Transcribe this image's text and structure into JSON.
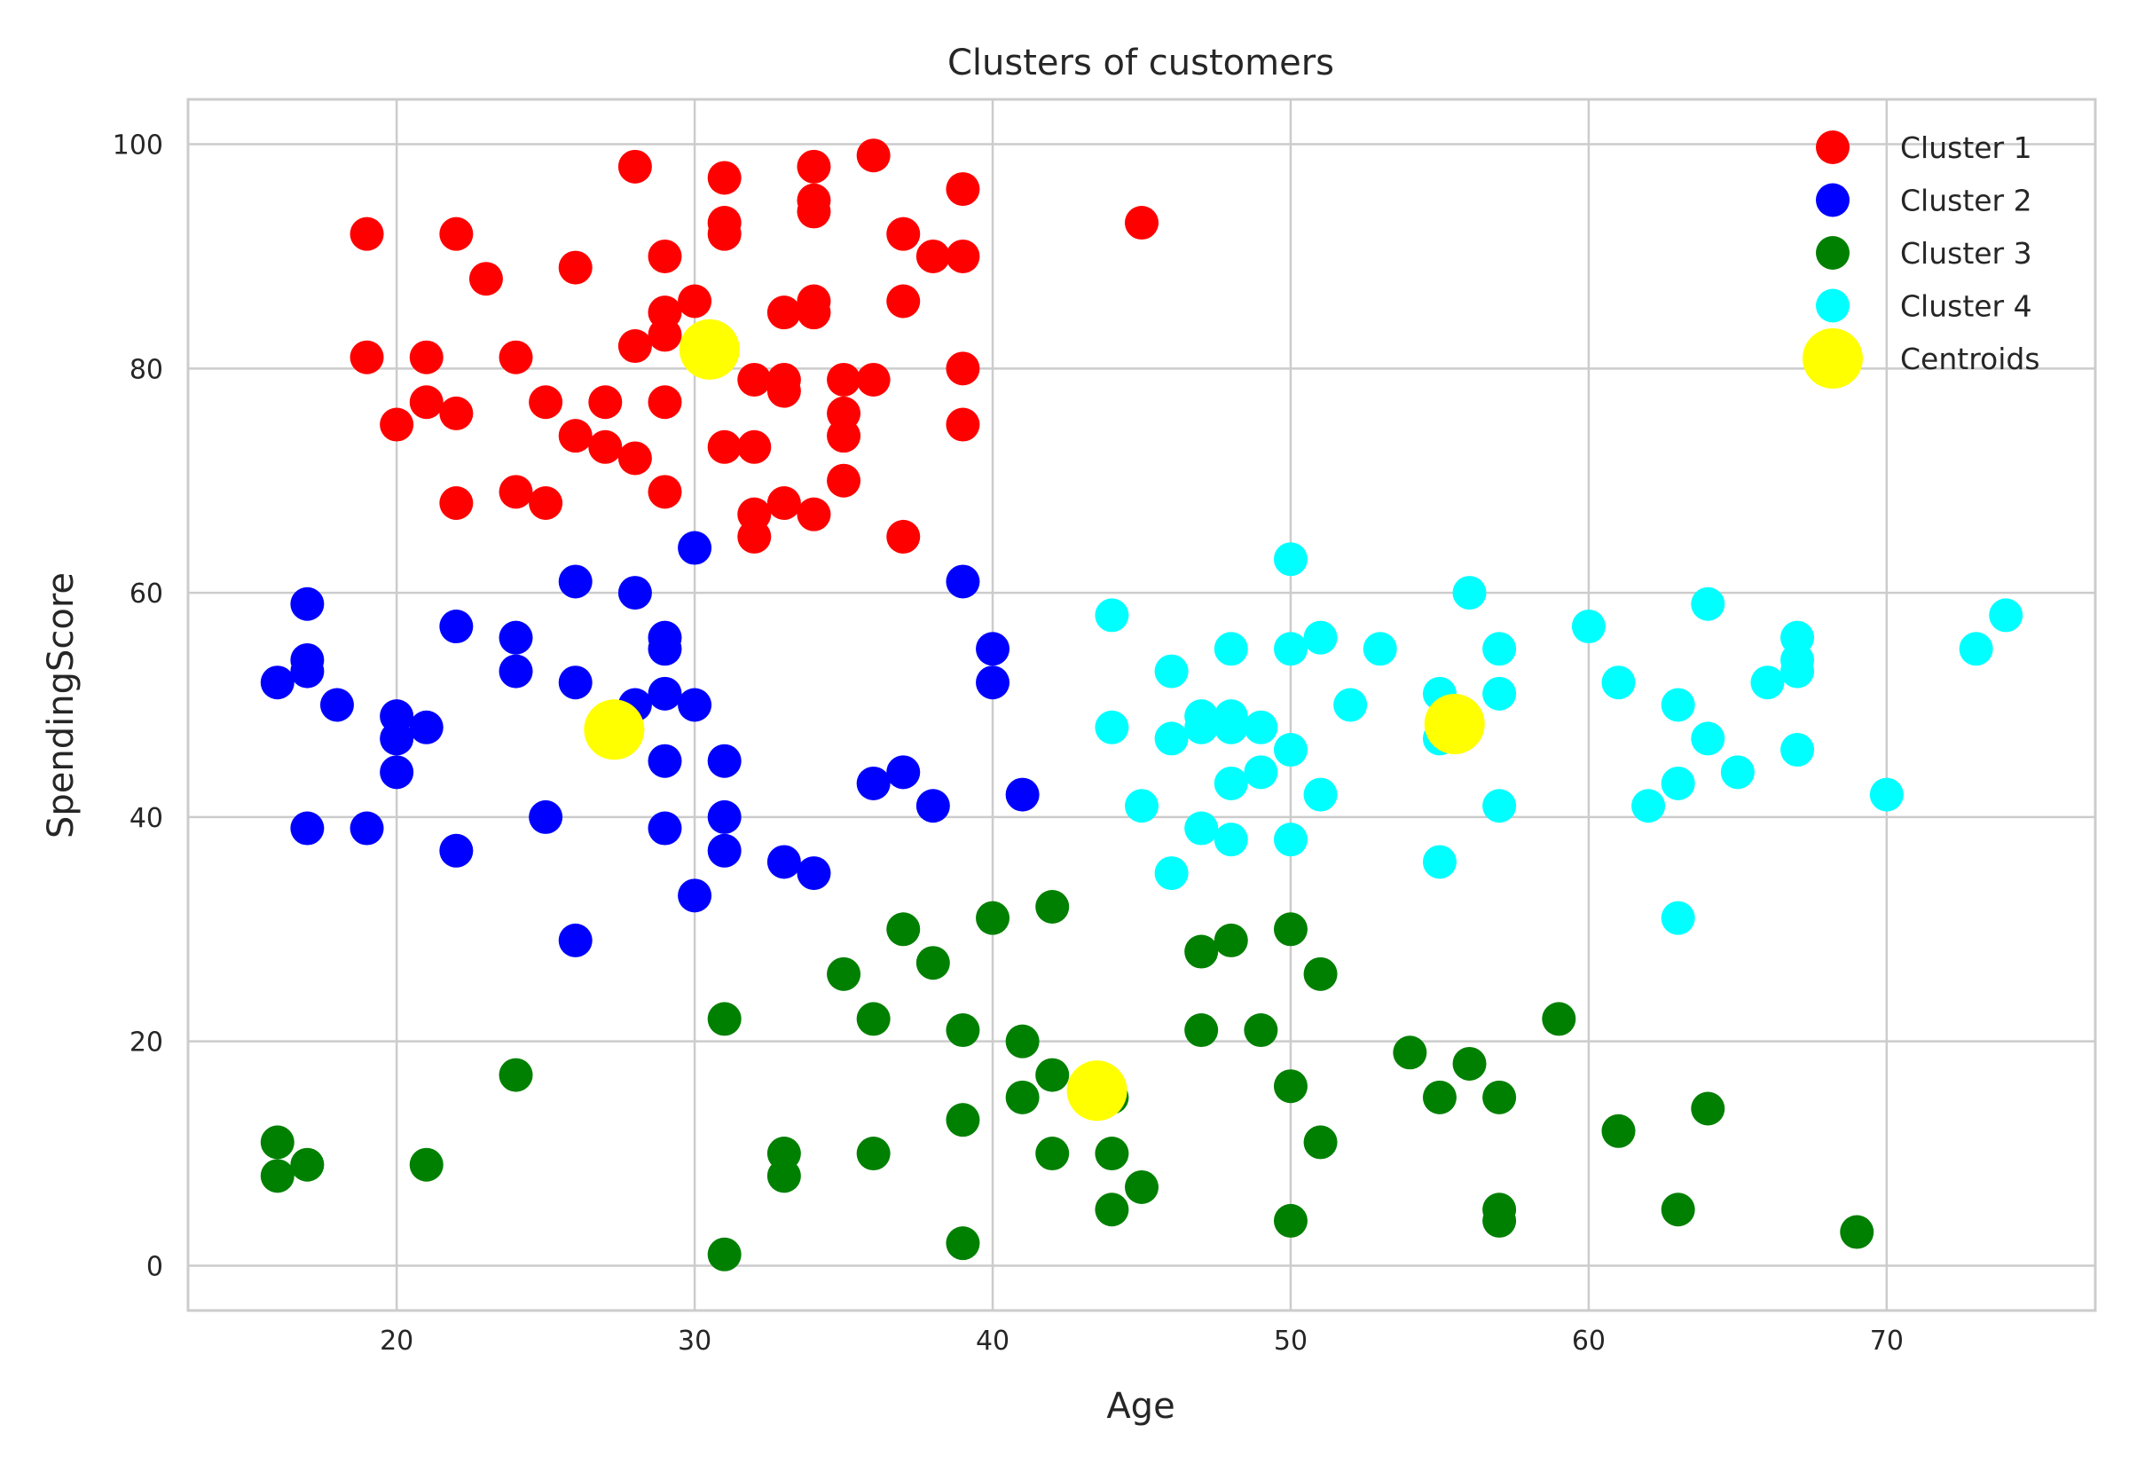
{
  "chart_data": {
    "type": "scatter",
    "title": "Clusters of customers",
    "xlabel": "Age",
    "ylabel": "SpendingScore",
    "xlim": [
      13,
      77
    ],
    "ylim": [
      -4,
      104
    ],
    "xticks": [
      20,
      30,
      40,
      50,
      60,
      70
    ],
    "yticks": [
      0,
      20,
      40,
      60,
      80,
      100
    ],
    "grid": true,
    "legend_position": "top-right",
    "series": [
      {
        "name": "Cluster 1",
        "color": "#ff0000",
        "points": [
          [
            19,
            92
          ],
          [
            19,
            81
          ],
          [
            20,
            75
          ],
          [
            21,
            81
          ],
          [
            21,
            77
          ],
          [
            22,
            92
          ],
          [
            22,
            76
          ],
          [
            22,
            68
          ],
          [
            23,
            88
          ],
          [
            24,
            81
          ],
          [
            24,
            69
          ],
          [
            25,
            77
          ],
          [
            25,
            68
          ],
          [
            26,
            89
          ],
          [
            26,
            74
          ],
          [
            27,
            77
          ],
          [
            27,
            73
          ],
          [
            28,
            98
          ],
          [
            28,
            82
          ],
          [
            28,
            72
          ],
          [
            29,
            90
          ],
          [
            29,
            85
          ],
          [
            29,
            83
          ],
          [
            29,
            77
          ],
          [
            29,
            69
          ],
          [
            30,
            86
          ],
          [
            31,
            97
          ],
          [
            31,
            93
          ],
          [
            31,
            92
          ],
          [
            31,
            73
          ],
          [
            32,
            79
          ],
          [
            32,
            73
          ],
          [
            32,
            67
          ],
          [
            32,
            65
          ],
          [
            33,
            85
          ],
          [
            33,
            79
          ],
          [
            33,
            78
          ],
          [
            33,
            68
          ],
          [
            34,
            98
          ],
          [
            34,
            95
          ],
          [
            34,
            94
          ],
          [
            34,
            86
          ],
          [
            34,
            85
          ],
          [
            34,
            67
          ],
          [
            35,
            79
          ],
          [
            35,
            76
          ],
          [
            35,
            74
          ],
          [
            35,
            70
          ],
          [
            36,
            99
          ],
          [
            36,
            79
          ],
          [
            37,
            92
          ],
          [
            37,
            86
          ],
          [
            37,
            65
          ],
          [
            38,
            90
          ],
          [
            39,
            96
          ],
          [
            39,
            90
          ],
          [
            39,
            80
          ],
          [
            39,
            75
          ],
          [
            45,
            93
          ]
        ]
      },
      {
        "name": "Cluster 2",
        "color": "#0000ff",
        "points": [
          [
            16,
            52
          ],
          [
            17,
            59
          ],
          [
            17,
            54
          ],
          [
            17,
            53
          ],
          [
            17,
            39
          ],
          [
            18,
            50
          ],
          [
            19,
            39
          ],
          [
            20,
            49
          ],
          [
            20,
            47
          ],
          [
            20,
            44
          ],
          [
            21,
            48
          ],
          [
            22,
            57
          ],
          [
            22,
            37
          ],
          [
            24,
            56
          ],
          [
            24,
            53
          ],
          [
            25,
            40
          ],
          [
            26,
            61
          ],
          [
            26,
            52
          ],
          [
            26,
            29
          ],
          [
            28,
            60
          ],
          [
            28,
            50
          ],
          [
            29,
            56
          ],
          [
            29,
            55
          ],
          [
            29,
            51
          ],
          [
            29,
            45
          ],
          [
            29,
            39
          ],
          [
            30,
            64
          ],
          [
            30,
            50
          ],
          [
            30,
            33
          ],
          [
            31,
            45
          ],
          [
            31,
            40
          ],
          [
            31,
            37
          ],
          [
            33,
            36
          ],
          [
            34,
            35
          ],
          [
            36,
            43
          ],
          [
            37,
            44
          ],
          [
            38,
            41
          ],
          [
            39,
            61
          ],
          [
            40,
            55
          ],
          [
            40,
            52
          ],
          [
            41,
            42
          ]
        ]
      },
      {
        "name": "Cluster 3",
        "color": "#008000",
        "points": [
          [
            16,
            11
          ],
          [
            16,
            8
          ],
          [
            17,
            9
          ],
          [
            21,
            9
          ],
          [
            24,
            17
          ],
          [
            31,
            22
          ],
          [
            31,
            1
          ],
          [
            33,
            10
          ],
          [
            33,
            8
          ],
          [
            35,
            26
          ],
          [
            36,
            22
          ],
          [
            36,
            10
          ],
          [
            37,
            30
          ],
          [
            38,
            27
          ],
          [
            39,
            21
          ],
          [
            39,
            13
          ],
          [
            39,
            2
          ],
          [
            40,
            31
          ],
          [
            41,
            20
          ],
          [
            41,
            15
          ],
          [
            42,
            32
          ],
          [
            42,
            17
          ],
          [
            42,
            10
          ],
          [
            44,
            15
          ],
          [
            44,
            10
          ],
          [
            44,
            5
          ],
          [
            45,
            7
          ],
          [
            47,
            28
          ],
          [
            47,
            21
          ],
          [
            48,
            29
          ],
          [
            49,
            21
          ],
          [
            50,
            30
          ],
          [
            50,
            16
          ],
          [
            50,
            4
          ],
          [
            51,
            26
          ],
          [
            51,
            11
          ],
          [
            54,
            19
          ],
          [
            55,
            15
          ],
          [
            56,
            18
          ],
          [
            57,
            15
          ],
          [
            57,
            5
          ],
          [
            57,
            4
          ],
          [
            59,
            22
          ],
          [
            61,
            12
          ],
          [
            63,
            5
          ],
          [
            64,
            14
          ],
          [
            69,
            3
          ]
        ]
      },
      {
        "name": "Cluster 4",
        "color": "#00ffff",
        "points": [
          [
            44,
            58
          ],
          [
            44,
            48
          ],
          [
            45,
            41
          ],
          [
            46,
            53
          ],
          [
            46,
            47
          ],
          [
            46,
            35
          ],
          [
            47,
            49
          ],
          [
            47,
            48
          ],
          [
            47,
            39
          ],
          [
            48,
            55
          ],
          [
            48,
            49
          ],
          [
            48,
            48
          ],
          [
            48,
            43
          ],
          [
            48,
            38
          ],
          [
            49,
            48
          ],
          [
            49,
            44
          ],
          [
            50,
            63
          ],
          [
            50,
            55
          ],
          [
            50,
            46
          ],
          [
            50,
            38
          ],
          [
            51,
            56
          ],
          [
            51,
            42
          ],
          [
            52,
            50
          ],
          [
            53,
            55
          ],
          [
            55,
            51
          ],
          [
            55,
            47
          ],
          [
            55,
            36
          ],
          [
            56,
            60
          ],
          [
            57,
            55
          ],
          [
            57,
            51
          ],
          [
            57,
            41
          ],
          [
            60,
            57
          ],
          [
            61,
            52
          ],
          [
            62,
            41
          ],
          [
            63,
            50
          ],
          [
            63,
            43
          ],
          [
            63,
            31
          ],
          [
            64,
            59
          ],
          [
            64,
            47
          ],
          [
            65,
            44
          ],
          [
            66,
            52
          ],
          [
            67,
            56
          ],
          [
            67,
            54
          ],
          [
            67,
            53
          ],
          [
            67,
            46
          ],
          [
            70,
            42
          ],
          [
            73,
            55
          ],
          [
            74,
            58
          ]
        ]
      },
      {
        "name": "Centroids",
        "color": "#ffff00",
        "points": [
          [
            30.5,
            81.7
          ],
          [
            27.3,
            47.8
          ],
          [
            43.5,
            15.6
          ],
          [
            55.5,
            48.3
          ]
        ]
      }
    ]
  }
}
